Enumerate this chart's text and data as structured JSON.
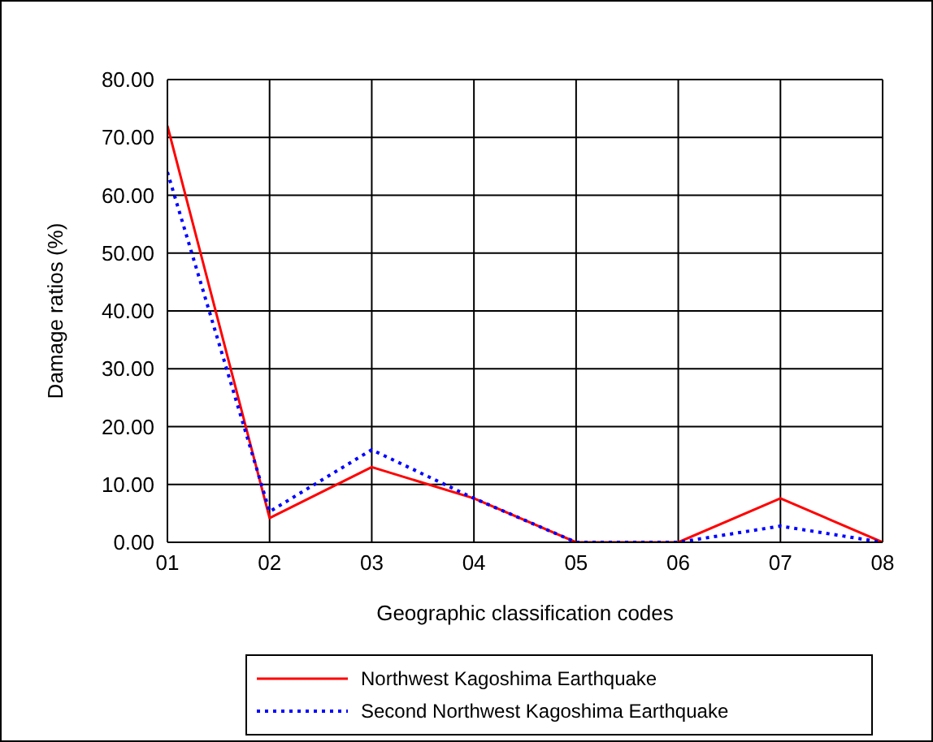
{
  "chart_data": {
    "type": "line",
    "xlabel": "Geographic classification codes",
    "ylabel": "Damage ratios (%)",
    "categories": [
      "01",
      "02",
      "03",
      "04",
      "05",
      "06",
      "07",
      "08"
    ],
    "series": [
      {
        "name": "Northwest Kagoshima Earthquake",
        "color": "#ff0000",
        "line_style": "solid",
        "values": [
          72,
          4.2,
          13,
          7.6,
          0,
          0,
          7.6,
          0
        ]
      },
      {
        "name": "Second Northwest Kagoshima Earthquake",
        "color": "#0000ff",
        "line_style": "dotted",
        "values": [
          64,
          5.3,
          16,
          7.6,
          0,
          0,
          2.8,
          0
        ]
      }
    ],
    "ylim": [
      0,
      80
    ],
    "yticks": [
      {
        "value": 0,
        "label": "0.00"
      },
      {
        "value": 10,
        "label": "10.00"
      },
      {
        "value": 20,
        "label": "20.00"
      },
      {
        "value": 30,
        "label": "30.00"
      },
      {
        "value": 40,
        "label": "40.00"
      },
      {
        "value": 50,
        "label": "50.00"
      },
      {
        "value": 60,
        "label": "60.00"
      },
      {
        "value": 70,
        "label": "70.00"
      },
      {
        "value": 80,
        "label": "80.00"
      }
    ],
    "grid": true,
    "legend": "bottom",
    "marker": "none"
  }
}
